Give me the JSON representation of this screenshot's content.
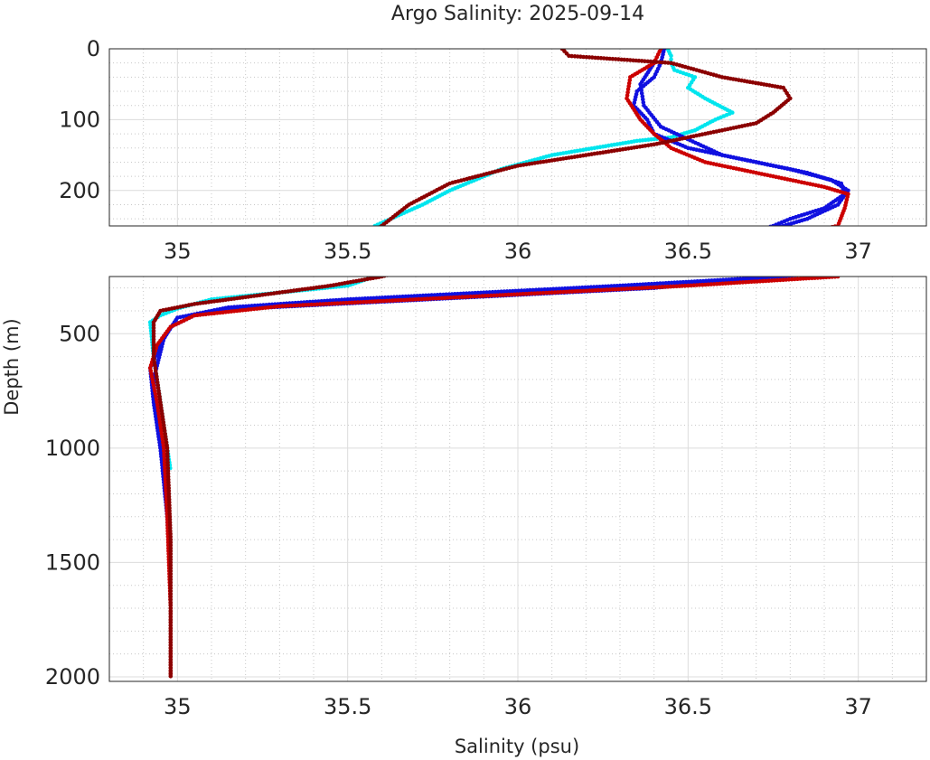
{
  "chart_data": {
    "type": "scatter",
    "title": "Argo Salinity: 2025-09-14",
    "xlabel": "Salinity (psu)",
    "ylabel": "Depth (m)",
    "colors": {
      "cyan": "#00e5ee",
      "blue": "#1010e0",
      "red": "#cc0000",
      "darkred": "#8b0000"
    },
    "panels": [
      {
        "name": "upper",
        "xlim": [
          34.8,
          37.2
        ],
        "ylim": [
          0,
          250
        ],
        "xticks": [
          35,
          35.5,
          36,
          36.5,
          37
        ],
        "xtick_labels": [
          "35",
          "35.5",
          "36",
          "36.5",
          "37"
        ],
        "yticks": [
          0,
          100,
          200
        ],
        "ytick_labels": [
          "0",
          "100",
          "200"
        ],
        "y_reversed": true
      },
      {
        "name": "lower",
        "xlim": [
          34.8,
          37.2
        ],
        "ylim": [
          250,
          2020
        ],
        "xticks": [
          35,
          35.5,
          36,
          36.5,
          37
        ],
        "xtick_labels": [
          "35",
          "35.5",
          "36",
          "36.5",
          "37"
        ],
        "yticks": [
          500,
          1000,
          1500,
          2000
        ],
        "ytick_labels": [
          "500",
          "1000",
          "1500",
          "2000"
        ],
        "y_reversed": true
      }
    ],
    "series": [
      {
        "name": "profile-cyan",
        "color": "cyan",
        "points": [
          [
            36.44,
            0
          ],
          [
            36.45,
            10
          ],
          [
            36.45,
            20
          ],
          [
            36.46,
            30
          ],
          [
            36.52,
            40
          ],
          [
            36.5,
            55
          ],
          [
            36.55,
            70
          ],
          [
            36.63,
            90
          ],
          [
            36.58,
            100
          ],
          [
            36.52,
            115
          ],
          [
            36.45,
            125
          ],
          [
            36.35,
            130
          ],
          [
            36.1,
            150
          ],
          [
            35.95,
            170
          ],
          [
            35.8,
            200
          ],
          [
            35.72,
            220
          ],
          [
            35.65,
            235
          ],
          [
            35.58,
            250
          ],
          [
            35.5,
            290
          ],
          [
            35.3,
            320
          ],
          [
            35.1,
            350
          ],
          [
            35.0,
            390
          ],
          [
            34.95,
            420
          ],
          [
            34.92,
            450
          ],
          [
            34.93,
            600
          ],
          [
            34.95,
            800
          ],
          [
            34.97,
            1000
          ],
          [
            34.98,
            1100
          ]
        ]
      },
      {
        "name": "profile-blue-a",
        "color": "blue",
        "points": [
          [
            36.43,
            0
          ],
          [
            36.42,
            20
          ],
          [
            36.4,
            40
          ],
          [
            36.35,
            60
          ],
          [
            36.34,
            80
          ],
          [
            36.38,
            100
          ],
          [
            36.4,
            120
          ],
          [
            36.5,
            140
          ],
          [
            36.7,
            160
          ],
          [
            36.85,
            175
          ],
          [
            36.95,
            190
          ],
          [
            36.96,
            205
          ],
          [
            36.9,
            225
          ],
          [
            36.8,
            240
          ],
          [
            36.75,
            250
          ],
          [
            36.4,
            300
          ],
          [
            36.0,
            330
          ],
          [
            35.6,
            360
          ],
          [
            35.2,
            390
          ],
          [
            35.05,
            420
          ],
          [
            34.98,
            470
          ],
          [
            34.95,
            550
          ],
          [
            34.92,
            650
          ],
          [
            34.93,
            800
          ],
          [
            34.95,
            1000
          ],
          [
            34.97,
            1300
          ],
          [
            34.98,
            1600
          ]
        ]
      },
      {
        "name": "profile-blue-b",
        "color": "blue",
        "points": [
          [
            36.4,
            20
          ],
          [
            36.36,
            50
          ],
          [
            36.37,
            80
          ],
          [
            36.42,
            110
          ],
          [
            36.6,
            150
          ],
          [
            36.8,
            170
          ],
          [
            36.92,
            185
          ],
          [
            36.97,
            200
          ],
          [
            36.94,
            220
          ],
          [
            36.85,
            240
          ],
          [
            36.78,
            250
          ],
          [
            36.3,
            290
          ],
          [
            35.9,
            320
          ],
          [
            35.5,
            350
          ],
          [
            35.15,
            385
          ],
          [
            35.0,
            430
          ],
          [
            34.96,
            520
          ],
          [
            34.93,
            700
          ],
          [
            34.94,
            900
          ],
          [
            34.96,
            1100
          ]
        ]
      },
      {
        "name": "profile-red",
        "color": "red",
        "points": [
          [
            36.42,
            0
          ],
          [
            36.4,
            20
          ],
          [
            36.33,
            40
          ],
          [
            36.32,
            70
          ],
          [
            36.36,
            100
          ],
          [
            36.4,
            120
          ],
          [
            36.45,
            140
          ],
          [
            36.55,
            160
          ],
          [
            36.75,
            180
          ],
          [
            36.9,
            195
          ],
          [
            36.97,
            205
          ],
          [
            36.96,
            225
          ],
          [
            36.94,
            250
          ],
          [
            36.5,
            290
          ],
          [
            36.1,
            320
          ],
          [
            35.7,
            350
          ],
          [
            35.3,
            380
          ],
          [
            35.05,
            420
          ],
          [
            34.98,
            470
          ],
          [
            34.94,
            550
          ],
          [
            34.92,
            650
          ],
          [
            34.94,
            800
          ],
          [
            34.96,
            1000
          ],
          [
            34.97,
            1300
          ],
          [
            34.98,
            1700
          ],
          [
            34.98,
            2000
          ]
        ]
      },
      {
        "name": "profile-darkred",
        "color": "darkred",
        "points": [
          [
            36.13,
            0
          ],
          [
            36.15,
            10
          ],
          [
            36.45,
            20
          ],
          [
            36.6,
            40
          ],
          [
            36.78,
            55
          ],
          [
            36.8,
            70
          ],
          [
            36.75,
            90
          ],
          [
            36.7,
            105
          ],
          [
            36.55,
            120
          ],
          [
            36.4,
            135
          ],
          [
            36.0,
            165
          ],
          [
            35.8,
            190
          ],
          [
            35.68,
            220
          ],
          [
            35.6,
            250
          ],
          [
            35.45,
            290
          ],
          [
            35.25,
            330
          ],
          [
            35.05,
            370
          ],
          [
            34.95,
            400
          ],
          [
            34.93,
            450
          ],
          [
            34.93,
            600
          ],
          [
            34.95,
            800
          ],
          [
            34.97,
            1000
          ],
          [
            34.98,
            1400
          ],
          [
            34.98,
            1800
          ],
          [
            34.98,
            2010
          ]
        ]
      }
    ]
  }
}
